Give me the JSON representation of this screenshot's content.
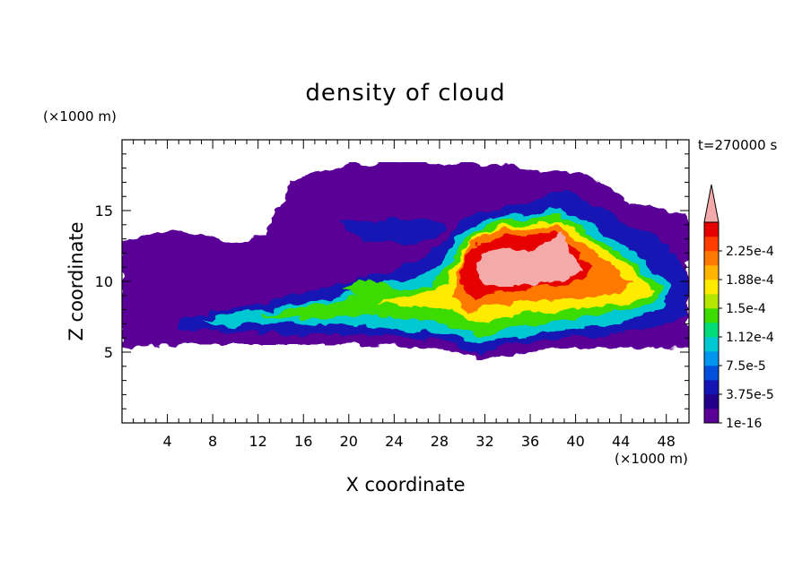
{
  "chart_data": {
    "type": "heatmap",
    "title": "density of cloud",
    "xlabel": "X coordinate",
    "ylabel": "Z coordinate",
    "x_unit": "(×1000 m)",
    "y_unit": "(×1000 m)",
    "time_label": "t=270000 s",
    "xlim": [
      0,
      50
    ],
    "ylim": [
      0,
      20
    ],
    "x_ticks": [
      "4",
      "8",
      "12",
      "16",
      "20",
      "24",
      "28",
      "32",
      "36",
      "40",
      "44",
      "48"
    ],
    "y_ticks": [
      "5",
      "10",
      "15"
    ],
    "colorbar": {
      "labels": [
        "1e-16",
        "3.75e-5",
        "7.5e-5",
        "1.12e-4",
        "1.5e-4",
        "1.88e-4",
        "2.25e-4"
      ],
      "levels": [
        1e-16,
        1.875e-05,
        3.75e-05,
        5.625e-05,
        7.5e-05,
        9.375e-05,
        0.0001125,
        0.00013125,
        0.00015,
        0.00016875,
        0.0001875,
        0.00020625,
        0.000225,
        0.00024375
      ],
      "colors": [
        "#5a0096",
        "#23008c",
        "#1414b4",
        "#0050dc",
        "#0096f0",
        "#00c8d2",
        "#00dc78",
        "#3cdc00",
        "#b4e600",
        "#ffeb00",
        "#ffb400",
        "#ff7800",
        "#ff3c00",
        "#e60000"
      ],
      "overflow_color": "#f5aaaa"
    }
  }
}
